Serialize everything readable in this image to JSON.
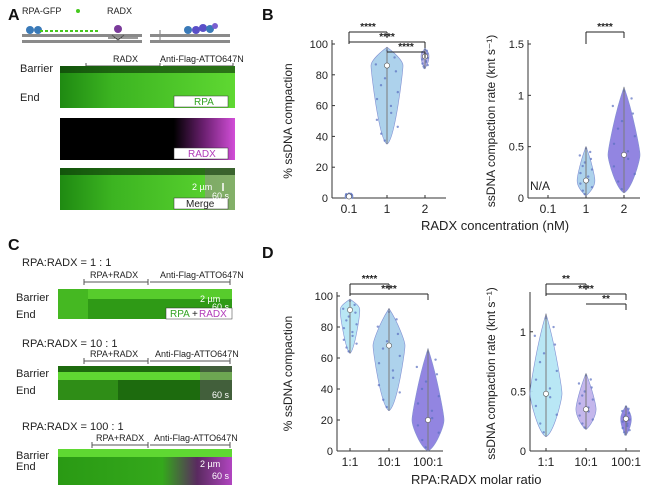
{
  "panels": {
    "A": "A",
    "B": "B",
    "C": "C",
    "D": "D"
  },
  "panel_a": {
    "legend": {
      "rpa": "RPA-GFP",
      "radx": "RADX"
    },
    "phases": {
      "p1": "RADX",
      "p2": "Anti-Flag-ATTO647N"
    },
    "rows": {
      "barrier": "Barrier",
      "end": "End"
    },
    "channels": {
      "rpa": "RPA",
      "radx": "RADX",
      "merge": "Merge"
    },
    "scalebar": {
      "um": "2 µm",
      "s": "60 s"
    }
  },
  "panel_c": {
    "conditions": [
      {
        "label": "RPA:RADX = 1 : 1",
        "p1": "RPA+RADX",
        "p2": "Anti-Flag-ATTO647N",
        "barrier": "Barrier",
        "end": "End",
        "um": "2 µm",
        "s": "60 s"
      },
      {
        "label": "RPA:RADX = 10 : 1",
        "p1": "RPA+RADX",
        "p2": "Anti-Flag-ATTO647N",
        "barrier": "Barrier",
        "end": "End",
        "um": "",
        "s": "60 s"
      },
      {
        "label": "RPA:RADX = 100 : 1",
        "p1": "RPA+RADX",
        "p2": "Anti-Flag-ATTO647N",
        "barrier": "Barrier",
        "end": "End",
        "um": "2 µm",
        "s": "60 s"
      }
    ],
    "merge_label": {
      "rpa": "RPA",
      "plus": "+",
      "radx": "RADX"
    }
  },
  "colors": {
    "green": "#46c81e",
    "magenta": "#d24ed8",
    "v_light": "#a9d0ec",
    "v_mid": "#b9b2e8",
    "v_dark": "#8d7fe0",
    "v_cyan": "#b6e6f5",
    "v_lilac": "#c1b4ec",
    "v_purple": "#8d7fe0"
  },
  "chart_data": [
    {
      "type": "violin",
      "xlabel": "RADX concentration (nM)",
      "ylabel": "% ssDNA compaction",
      "categories": [
        "0.1",
        "1",
        "2"
      ],
      "ylim": [
        0,
        100
      ],
      "yticks": [
        0,
        20,
        40,
        60,
        80,
        100
      ],
      "median": [
        1,
        86,
        92
      ],
      "range": [
        [
          0,
          3
        ],
        [
          35,
          98
        ],
        [
          84,
          97
        ]
      ],
      "significance": [
        {
          "from": "0.1",
          "to": "1",
          "label": "****"
        },
        {
          "from": "0.1",
          "to": "2",
          "label": "****"
        },
        {
          "from": "1",
          "to": "2",
          "label": "****"
        }
      ]
    },
    {
      "type": "violin",
      "ylabel": "ssDNA compaction rate (knt s⁻¹)",
      "categories": [
        "0.1",
        "1",
        "2"
      ],
      "ylim": [
        0,
        1.5
      ],
      "yticks": [
        0,
        0.5,
        1,
        1.5
      ],
      "na_label": "N/A",
      "median": [
        null,
        0.17,
        0.42
      ],
      "range": [
        null,
        [
          0.02,
          0.5
        ],
        [
          0.05,
          1.08
        ]
      ],
      "significance": [
        {
          "from": "1",
          "to": "2",
          "label": "****"
        }
      ]
    },
    {
      "type": "violin",
      "ylabel": "% ssDNA compaction",
      "categories": [
        "1:1",
        "10:1",
        "100:1"
      ],
      "ylim": [
        0,
        100
      ],
      "yticks": [
        0,
        20,
        40,
        60,
        80,
        100
      ],
      "median": [
        91,
        68,
        20
      ],
      "range": [
        [
          63,
          98
        ],
        [
          26,
          92
        ],
        [
          0,
          66
        ]
      ],
      "significance": [
        {
          "from": "1:1",
          "to": "10:1",
          "label": "****"
        },
        {
          "from": "1:1",
          "to": "100:1",
          "label": "****"
        }
      ]
    },
    {
      "type": "violin",
      "ylabel": "ssDNA compaction rate (knt s⁻¹)",
      "categories": [
        "1:1",
        "10:1",
        "100:1"
      ],
      "ylim": [
        0,
        1.3
      ],
      "yticks": [
        0,
        0.5,
        1
      ],
      "median": [
        0.48,
        0.35,
        0.27
      ],
      "range": [
        [
          0.12,
          1.15
        ],
        [
          0.18,
          0.65
        ],
        [
          0.13,
          0.38
        ]
      ],
      "significance": [
        {
          "from": "1:1",
          "to": "10:1",
          "label": "**"
        },
        {
          "from": "1:1",
          "to": "100:1",
          "label": "****"
        },
        {
          "from": "10:1",
          "to": "100:1",
          "label": "**"
        }
      ]
    }
  ],
  "shared_xlabel_d": "RPA:RADX molar ratio"
}
